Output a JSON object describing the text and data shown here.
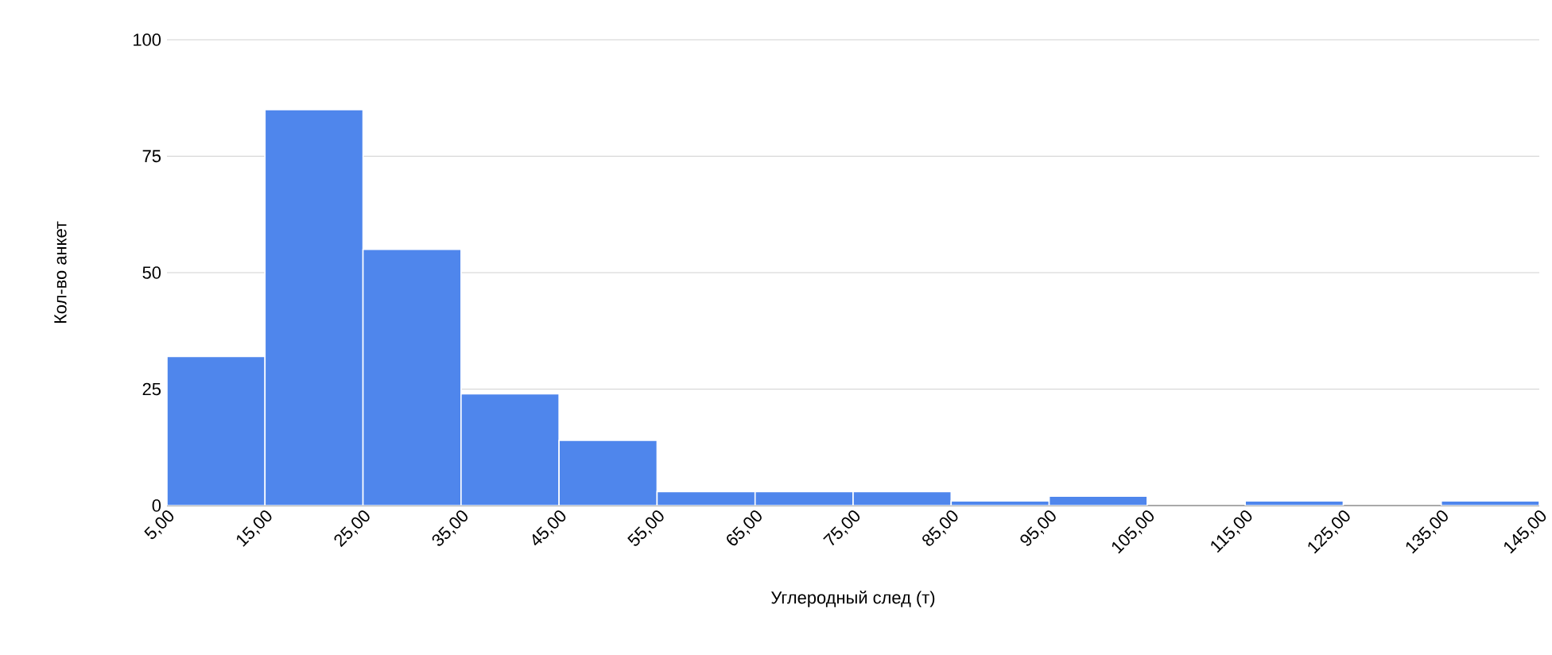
{
  "chart_data": {
    "type": "histogram",
    "xlabel": "Углеродный след (т)",
    "ylabel": "Кол-во анкет",
    "bins": [
      5,
      15,
      25,
      35,
      45,
      55,
      65,
      75,
      85,
      95,
      105,
      115,
      125,
      135,
      145
    ],
    "values": [
      32,
      85,
      55,
      24,
      14,
      3,
      3,
      3,
      1,
      2,
      0,
      1,
      0,
      1
    ],
    "color": "#4f86ec",
    "xlim": [
      5,
      145
    ],
    "xticks": [
      {
        "value": 5,
        "label": "5,00"
      },
      {
        "value": 15,
        "label": "15,00"
      },
      {
        "value": 25,
        "label": "25,00"
      },
      {
        "value": 35,
        "label": "35,00"
      },
      {
        "value": 45,
        "label": "45,00"
      },
      {
        "value": 55,
        "label": "55,00"
      },
      {
        "value": 65,
        "label": "65,00"
      },
      {
        "value": 75,
        "label": "75,00"
      },
      {
        "value": 85,
        "label": "85,00"
      },
      {
        "value": 95,
        "label": "95,00"
      },
      {
        "value": 105,
        "label": "105,00"
      },
      {
        "value": 115,
        "label": "115,00"
      },
      {
        "value": 125,
        "label": "125,00"
      },
      {
        "value": 135,
        "label": "135,00"
      },
      {
        "value": 145,
        "label": "145,00"
      }
    ],
    "ylim": [
      0,
      100
    ],
    "yticks": [
      0,
      25,
      50,
      75,
      100
    ],
    "grid": "y"
  }
}
